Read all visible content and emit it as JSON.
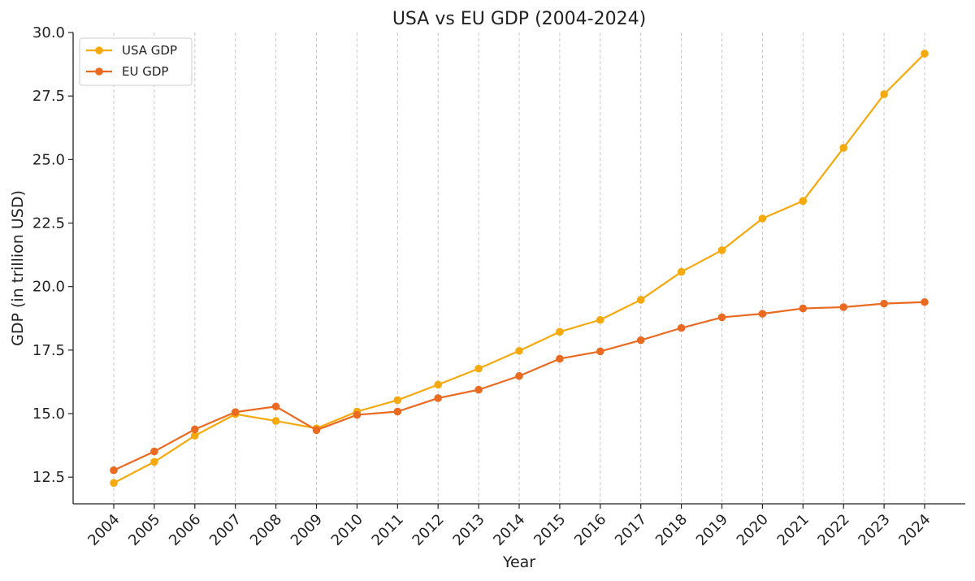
{
  "chart_data": {
    "type": "line",
    "title": "USA vs EU GDP (2004-2024)",
    "xlabel": "Year",
    "ylabel": "GDP (in trillion USD)",
    "categories": [
      "2004",
      "2005",
      "2006",
      "2007",
      "2008",
      "2009",
      "2010",
      "2011",
      "2012",
      "2013",
      "2014",
      "2015",
      "2016",
      "2017",
      "2018",
      "2019",
      "2020",
      "2021",
      "2022",
      "2023",
      "2024"
    ],
    "series": [
      {
        "name": "USA GDP",
        "color": "#f5a90d",
        "values": [
          12.27,
          13.1,
          14.13,
          14.98,
          14.71,
          14.42,
          15.08,
          15.53,
          16.14,
          16.77,
          17.47,
          18.22,
          18.69,
          19.48,
          20.58,
          21.43,
          22.68,
          23.37,
          25.46,
          27.57,
          29.17
        ]
      },
      {
        "name": "EU GDP",
        "color": "#ea6a21",
        "values": [
          12.77,
          13.51,
          14.38,
          15.06,
          15.28,
          14.35,
          14.95,
          15.08,
          15.61,
          15.94,
          16.48,
          17.16,
          17.45,
          17.89,
          18.37,
          18.79,
          18.93,
          19.14,
          19.19,
          19.33,
          19.39
        ]
      }
    ],
    "ylim": [
      11.45,
      30.0
    ],
    "yticks": [
      "12.5",
      "15.0",
      "17.5",
      "20.0",
      "22.5",
      "25.0",
      "27.5",
      "30.0"
    ],
    "grid": "vertical-dashed",
    "legend": "top-left"
  }
}
